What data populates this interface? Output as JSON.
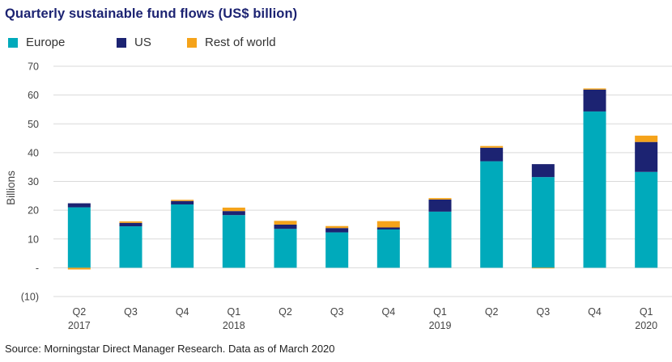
{
  "chart_data": {
    "type": "bar",
    "stacked": true,
    "title": "Quarterly sustainable fund flows (US$ billion)",
    "ylabel": "Billions",
    "ylim": [
      -10,
      70
    ],
    "y_ticks": [
      -10,
      0,
      10,
      20,
      30,
      40,
      50,
      60,
      70
    ],
    "y_tick_labels": [
      "(10)",
      "-",
      "10",
      "20",
      "30",
      "40",
      "50",
      "60",
      "70"
    ],
    "grid": true,
    "legend_position": "top-left",
    "categories": [
      "Q2 2017",
      "Q3 2017",
      "Q4 2017",
      "Q1 2018",
      "Q2 2018",
      "Q3 2018",
      "Q4 2018",
      "Q1 2019",
      "Q2 2019",
      "Q3 2019",
      "Q4 2019",
      "Q1 2020"
    ],
    "x_tick_labels": [
      [
        "Q2",
        "2017"
      ],
      [
        "Q3",
        ""
      ],
      [
        "Q4",
        ""
      ],
      [
        "Q1",
        "2018"
      ],
      [
        "Q2",
        ""
      ],
      [
        "Q3",
        ""
      ],
      [
        "Q4",
        ""
      ],
      [
        "Q1",
        "2019"
      ],
      [
        "Q2",
        ""
      ],
      [
        "Q3",
        ""
      ],
      [
        "Q4",
        ""
      ],
      [
        "Q1",
        "2020"
      ]
    ],
    "series": [
      {
        "name": "Europe",
        "color": "#00aabb",
        "values": [
          21.0,
          14.4,
          22.0,
          18.3,
          13.5,
          12.3,
          13.3,
          19.5,
          37.0,
          31.5,
          54.3,
          33.3
        ]
      },
      {
        "name": "US",
        "color": "#1c2372",
        "values": [
          1.4,
          1.2,
          1.2,
          1.4,
          1.5,
          1.5,
          0.7,
          4.2,
          4.7,
          4.5,
          7.6,
          10.4
        ]
      },
      {
        "name": "Rest of world",
        "color": "#f5a31a",
        "values": [
          -0.6,
          0.5,
          0.4,
          1.2,
          1.3,
          0.7,
          2.2,
          0.5,
          0.6,
          -0.2,
          0.4,
          2.2
        ]
      }
    ]
  },
  "source": "Source: Morningstar Direct Manager Research. Data as of March 2020"
}
